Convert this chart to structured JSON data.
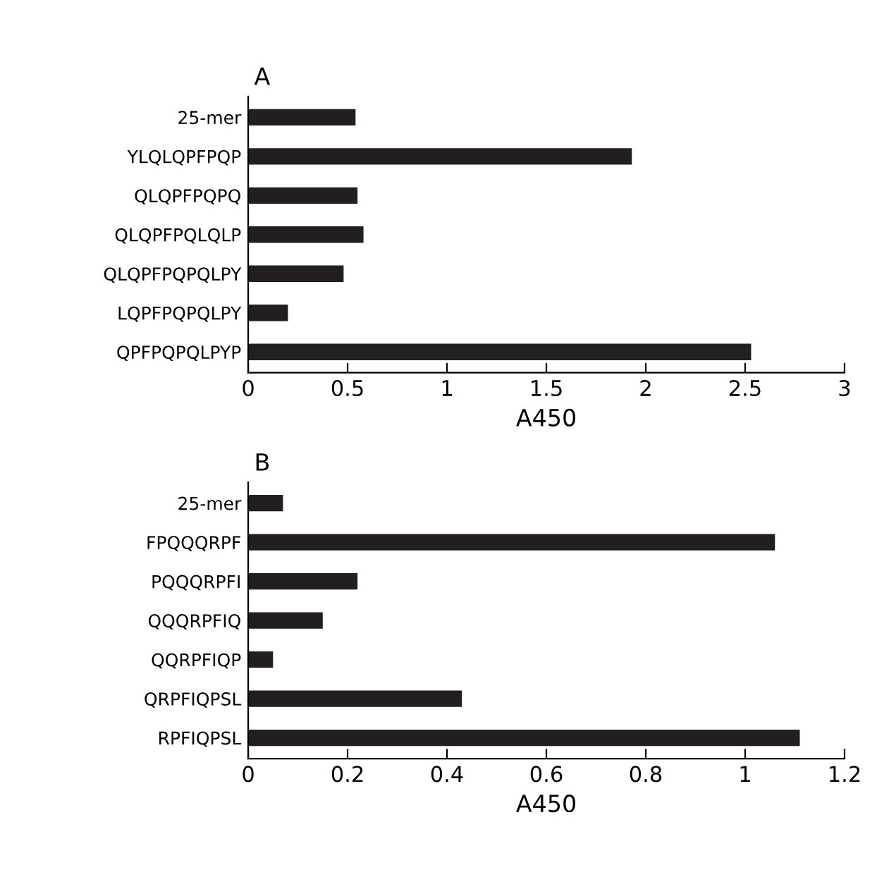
{
  "chart_data": [
    {
      "type": "bar",
      "orientation": "horizontal",
      "title": "A",
      "xlabel": "A450",
      "categories": [
        "25-mer",
        "YLQLQPFPQP",
        "QLQPFPQPQ",
        "QLQPFPQLQLP",
        "QLQPFPQPQLPY",
        "LQPFPQPQLPY",
        "QPFPQPQLPYP"
      ],
      "values": [
        0.54,
        1.93,
        0.55,
        0.58,
        0.48,
        0.2,
        2.53
      ],
      "color": "#231f20",
      "xlim": [
        0,
        3
      ],
      "xticks": [
        0,
        0.5,
        1,
        1.5,
        2,
        2.5,
        3
      ],
      "grid": false,
      "legend": false
    },
    {
      "type": "bar",
      "orientation": "horizontal",
      "title": "B",
      "xlabel": "A450",
      "categories": [
        "25-mer",
        "FPQQQRPF",
        "PQQQRPFI",
        "QQQRPFIQ",
        "QQRPFIQP",
        "QRPFIQPSL",
        "RPFIQPSL"
      ],
      "values": [
        0.07,
        1.06,
        0.22,
        0.15,
        0.05,
        0.43,
        1.11
      ],
      "color": "#231f20",
      "xlim": [
        0,
        1.2
      ],
      "xticks": [
        0,
        0.2,
        0.4,
        0.6,
        0.8,
        1,
        1.2
      ],
      "grid": false,
      "legend": false
    }
  ]
}
